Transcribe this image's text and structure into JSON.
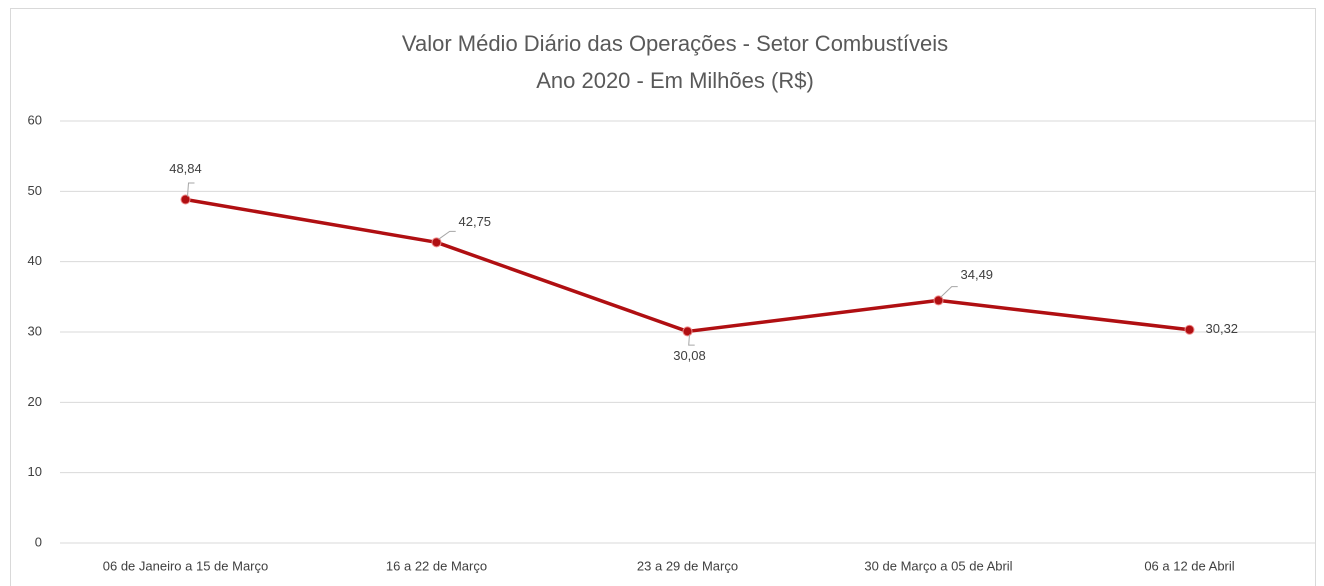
{
  "chart_data": {
    "type": "line",
    "title": "Valor Médio Diário das Operações - Setor Combustíveis",
    "subtitle": "Ano 2020 - Em Milhões (R$)",
    "categories": [
      "06 de Janeiro a 15 de Março",
      "16 a 22 de Março",
      "23 a 29 de Março",
      "30 de Março a 05 de Abril",
      "06 a 12 de Abril"
    ],
    "values": [
      48.84,
      42.75,
      30.08,
      34.49,
      30.32
    ],
    "value_labels": [
      "48,84",
      "42,75",
      "30,08",
      "34,49",
      "30,32"
    ],
    "color": "#b00f12",
    "ylim": [
      0,
      60
    ],
    "yticks": [
      0,
      10,
      20,
      30,
      40,
      50,
      60
    ],
    "grid": true
  }
}
